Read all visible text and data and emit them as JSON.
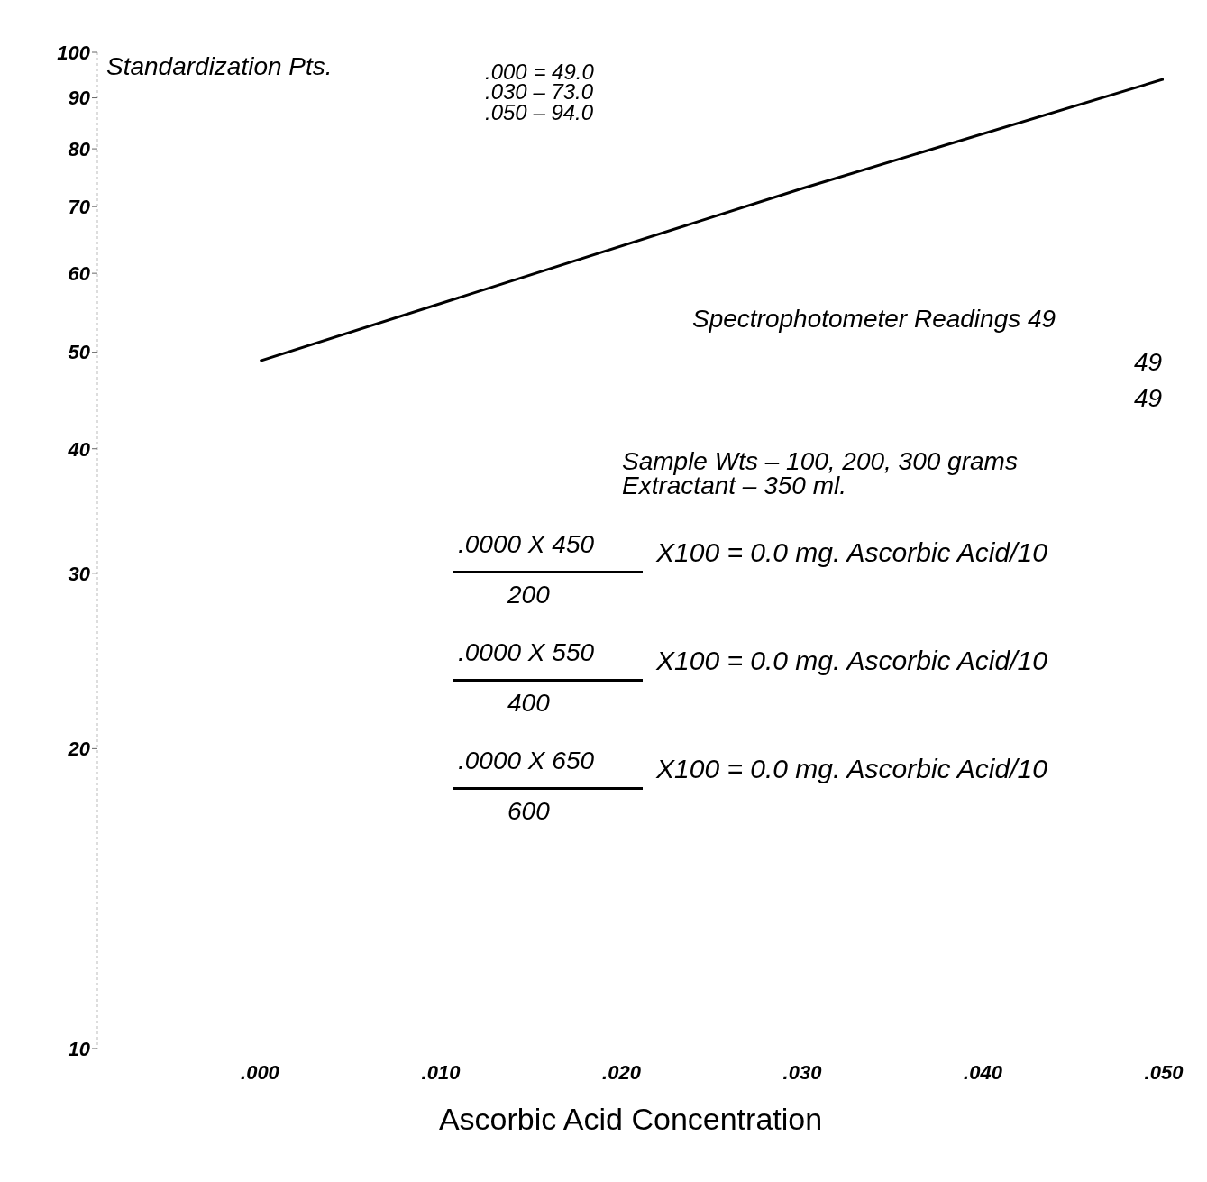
{
  "chart_data": {
    "type": "line",
    "xlabel": "Ascorbic Acid Concentration",
    "x": [
      0,
      0.03,
      0.05
    ],
    "series": [
      {
        "color": "#000000",
        "values": [
          49,
          73,
          94
        ]
      }
    ],
    "xlim": [
      -0.009,
      0.05
    ],
    "xticks": [
      {
        "value": 0,
        "label": ".000"
      },
      {
        "value": 0.01,
        "label": ".010"
      },
      {
        "value": 0.02,
        "label": ".020"
      },
      {
        "value": 0.03,
        "label": ".030"
      },
      {
        "value": 0.04,
        "label": ".040"
      },
      {
        "value": 0.05,
        "label": ".050"
      }
    ],
    "ylim": [
      10,
      100
    ],
    "yticks": [
      10,
      20,
      30,
      40,
      50,
      60,
      70,
      80,
      90,
      100
    ],
    "log": "y",
    "marker": "none",
    "annotations": [
      "Standardization Pts.",
      ".000 = 49.0",
      ".030 – 73.0",
      ".050 – 94.0",
      "Spectrophotometer Readings 49",
      "49",
      "49",
      "Sample Wts – 100, 200, 300 grams",
      "Extractant – 350 ml.",
      ".0000 X 450",
      "200",
      "X100  = 0.0 mg. Ascorbic Acid/10",
      ".0000 X 550",
      "400",
      "X100  = 0.0 mg. Ascorbic Acid/10",
      ".0000 X 650",
      "600",
      "X100  = 0.0 mg. Ascorbic Acid/10"
    ]
  }
}
